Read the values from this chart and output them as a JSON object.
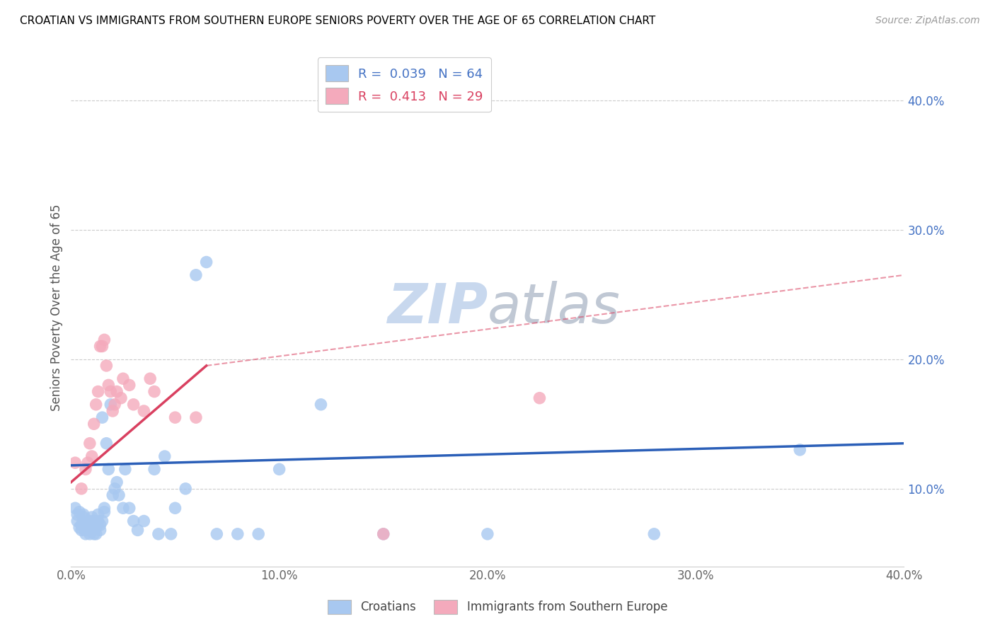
{
  "title": "CROATIAN VS IMMIGRANTS FROM SOUTHERN EUROPE SENIORS POVERTY OVER THE AGE OF 65 CORRELATION CHART",
  "source": "Source: ZipAtlas.com",
  "ylabel": "Seniors Poverty Over the Age of 65",
  "xlabel": "",
  "xlim": [
    0.0,
    0.4
  ],
  "ylim": [
    0.04,
    0.44
  ],
  "yticks": [
    0.1,
    0.2,
    0.3,
    0.4
  ],
  "xticks": [
    0.0,
    0.1,
    0.2,
    0.3,
    0.4
  ],
  "ytick_labels": [
    "10.0%",
    "20.0%",
    "30.0%",
    "40.0%"
  ],
  "xtick_labels": [
    "0.0%",
    "10.0%",
    "20.0%",
    "30.0%",
    "40.0%"
  ],
  "croatian_color": "#A8C8F0",
  "immigrant_color": "#F4AABC",
  "trendline_croatian_color": "#2B5FB8",
  "trendline_immigrant_color": "#D94060",
  "trendline_immigrant_dash_color": "#E8A0B0",
  "watermark_zip_color": "#C8D8EE",
  "watermark_atlas_color": "#C8C8C8",
  "legend_label_1": "R =  0.039   N = 64",
  "legend_label_2": "R =  0.413   N = 29",
  "legend_label_croatians": "Croatians",
  "legend_label_immigrants": "Immigrants from Southern Europe",
  "croatian_x": [
    0.002,
    0.003,
    0.003,
    0.004,
    0.004,
    0.005,
    0.005,
    0.006,
    0.006,
    0.006,
    0.007,
    0.007,
    0.008,
    0.008,
    0.008,
    0.009,
    0.009,
    0.009,
    0.01,
    0.01,
    0.01,
    0.011,
    0.011,
    0.012,
    0.012,
    0.012,
    0.013,
    0.013,
    0.014,
    0.014,
    0.015,
    0.015,
    0.016,
    0.016,
    0.017,
    0.018,
    0.019,
    0.02,
    0.021,
    0.022,
    0.023,
    0.025,
    0.026,
    0.028,
    0.03,
    0.032,
    0.035,
    0.04,
    0.042,
    0.045,
    0.048,
    0.05,
    0.055,
    0.06,
    0.065,
    0.07,
    0.08,
    0.09,
    0.1,
    0.12,
    0.15,
    0.2,
    0.28,
    0.35
  ],
  "croatian_y": [
    0.085,
    0.075,
    0.08,
    0.07,
    0.082,
    0.068,
    0.072,
    0.078,
    0.075,
    0.08,
    0.065,
    0.068,
    0.07,
    0.072,
    0.068,
    0.065,
    0.07,
    0.075,
    0.068,
    0.072,
    0.078,
    0.065,
    0.075,
    0.065,
    0.07,
    0.072,
    0.075,
    0.08,
    0.068,
    0.072,
    0.075,
    0.155,
    0.082,
    0.085,
    0.135,
    0.115,
    0.165,
    0.095,
    0.1,
    0.105,
    0.095,
    0.085,
    0.115,
    0.085,
    0.075,
    0.068,
    0.075,
    0.115,
    0.065,
    0.125,
    0.065,
    0.085,
    0.1,
    0.265,
    0.275,
    0.065,
    0.065,
    0.065,
    0.115,
    0.165,
    0.065,
    0.065,
    0.065,
    0.13
  ],
  "immigrant_x": [
    0.002,
    0.005,
    0.007,
    0.008,
    0.009,
    0.01,
    0.011,
    0.012,
    0.013,
    0.014,
    0.015,
    0.016,
    0.017,
    0.018,
    0.019,
    0.02,
    0.021,
    0.022,
    0.024,
    0.025,
    0.028,
    0.03,
    0.035,
    0.038,
    0.04,
    0.05,
    0.06,
    0.15,
    0.225
  ],
  "immigrant_y": [
    0.12,
    0.1,
    0.115,
    0.12,
    0.135,
    0.125,
    0.15,
    0.165,
    0.175,
    0.21,
    0.21,
    0.215,
    0.195,
    0.18,
    0.175,
    0.16,
    0.165,
    0.175,
    0.17,
    0.185,
    0.18,
    0.165,
    0.16,
    0.185,
    0.175,
    0.155,
    0.155,
    0.065,
    0.17
  ],
  "trendline_x_start": 0.0,
  "trendline_x_end": 0.4,
  "trendline_c_y_start": 0.118,
  "trendline_c_y_end": 0.135,
  "trendline_i_solid_x_end": 0.065,
  "trendline_i_y_start": 0.105,
  "trendline_i_y_end_solid": 0.195,
  "trendline_i_y_end_dash": 0.265
}
